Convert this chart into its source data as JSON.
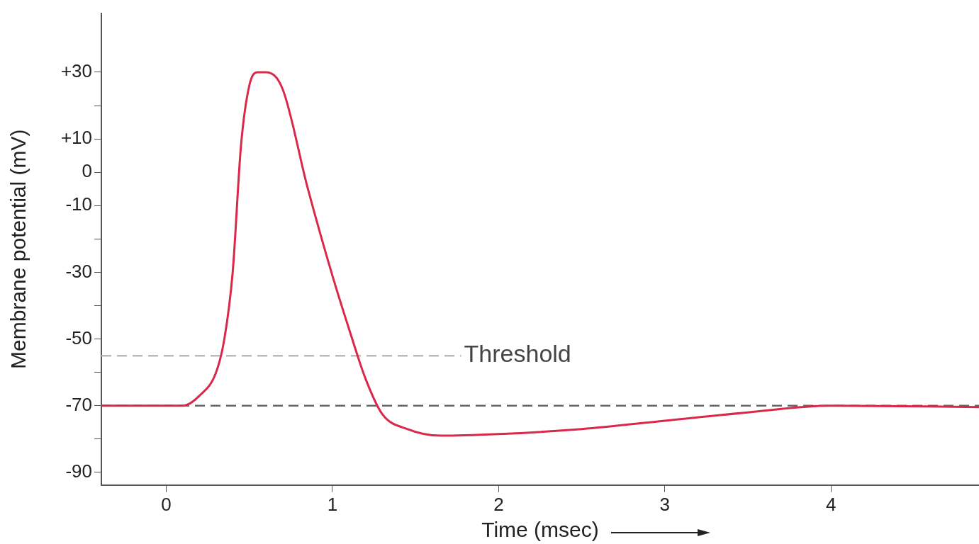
{
  "chart_data": {
    "type": "line",
    "xlabel": "Time (msec)",
    "ylabel": "Membrane potential (mV)",
    "x": [
      -0.39,
      0.1,
      0.2,
      0.3,
      0.35,
      0.4,
      0.45,
      0.5,
      0.55,
      0.6,
      0.7,
      0.85,
      1.0,
      1.1,
      1.2,
      1.3,
      1.45,
      1.65,
      2.0,
      2.5,
      3.0,
      3.5,
      4.0,
      4.89
    ],
    "series": [
      {
        "color": "#d9284a",
        "values": [
          -70,
          -70,
          -67,
          -60,
          -50,
          -30,
          8,
          26,
          30,
          30,
          25,
          -4.5,
          -31,
          -47,
          -62,
          -72.5,
          -77,
          -79,
          -78.5,
          -77,
          -74.5,
          -72,
          -70,
          -70.4
        ]
      }
    ],
    "xlim": [
      -0.39,
      4.89
    ],
    "xticks": [
      0,
      1,
      2,
      3,
      4
    ],
    "ylim": [
      -93.8,
      47.7
    ],
    "yticks": [
      {
        "value": 30,
        "label": "+30"
      },
      {
        "value": 20,
        "label": null
      },
      {
        "value": 10,
        "label": "+10"
      },
      0,
      -10,
      {
        "value": -20,
        "label": null
      },
      -30,
      {
        "value": -40,
        "label": null
      },
      -50,
      {
        "value": -60,
        "label": null
      },
      -70,
      {
        "value": -80,
        "label": null
      },
      -90
    ],
    "ref_lines": [
      {
        "axis": "y",
        "value": -55,
        "label": "Threshold",
        "color": "#bbbbbb",
        "line_style": "dashed"
      },
      {
        "axis": "y",
        "value": -70,
        "color": "#666666",
        "line_style": "dashed"
      }
    ],
    "grid": false,
    "legend": false,
    "marker": "none",
    "line_style": "solid"
  }
}
